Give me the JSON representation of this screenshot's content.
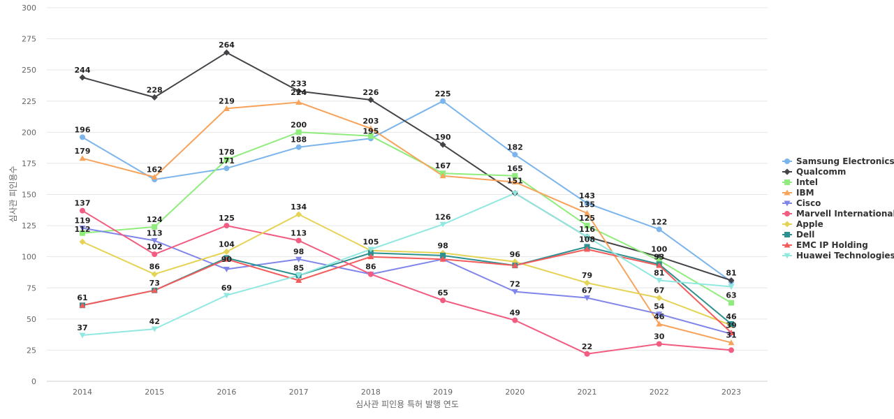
{
  "chart_data": {
    "type": "line",
    "title": "",
    "xlabel": "심사관 피인용 특허 발행 연도",
    "ylabel": "심사관 피인용수",
    "ylim": [
      0,
      300
    ],
    "yticks": [
      0,
      25,
      50,
      75,
      100,
      125,
      150,
      175,
      200,
      225,
      250,
      275,
      300
    ],
    "grid": true,
    "legend_position": "right",
    "categories": [
      "2014",
      "2015",
      "2016",
      "2017",
      "2018",
      "2019",
      "2020",
      "2021",
      "2022",
      "2023"
    ],
    "series": [
      {
        "name": "Samsung Electronics",
        "color": "#7cb5ec",
        "marker": "circle",
        "values": [
          196,
          162,
          171,
          188,
          195,
          225,
          182,
          143,
          122,
          80
        ]
      },
      {
        "name": "Qualcomm",
        "color": "#434348",
        "marker": "diamond",
        "values": [
          244,
          228,
          264,
          233,
          226,
          190,
          151,
          116,
          100,
          81
        ]
      },
      {
        "name": "Intel",
        "color": "#90ed7d",
        "marker": "square",
        "values": [
          119,
          124,
          178,
          200,
          197,
          167,
          165,
          125,
          97,
          63
        ]
      },
      {
        "name": "IBM",
        "color": "#f7a35c",
        "marker": "triangle",
        "values": [
          179,
          164,
          219,
          224,
          203,
          165,
          160,
          135,
          46,
          31
        ]
      },
      {
        "name": "Cisco",
        "color": "#8085e9",
        "marker": "triangle-down",
        "values": [
          123,
          113,
          90,
          98,
          86,
          98,
          72,
          67,
          54,
          38
        ]
      },
      {
        "name": "Marvell International",
        "color": "#f15c80",
        "marker": "circle",
        "values": [
          137,
          102,
          125,
          113,
          86,
          65,
          49,
          22,
          30,
          25
        ]
      },
      {
        "name": "Apple",
        "color": "#e4d354",
        "marker": "diamond",
        "values": [
          112,
          86,
          104,
          134,
          105,
          103,
          96,
          79,
          67,
          45
        ]
      },
      {
        "name": "Dell",
        "color": "#2b908f",
        "marker": "square",
        "values": [
          61,
          73,
          99,
          85,
          103,
          101,
          93,
          108,
          94,
          46
        ]
      },
      {
        "name": "EMC IP Holding",
        "color": "#f45b5b",
        "marker": "triangle",
        "values": [
          61,
          73,
          98,
          81,
          100,
          98,
          93,
          106,
          93,
          39
        ]
      },
      {
        "name": "Huawei Technologies",
        "color": "#91e8e1",
        "marker": "triangle-down",
        "values": [
          37,
          42,
          69,
          85,
          106,
          126,
          151,
          116,
          81,
          76
        ]
      }
    ],
    "data_labels": [
      {
        "text": "244",
        "x": "2014",
        "y": 244
      },
      {
        "text": "196",
        "x": "2014",
        "y": 196
      },
      {
        "text": "179",
        "x": "2014",
        "y": 179
      },
      {
        "text": "137",
        "x": "2014",
        "y": 137
      },
      {
        "text": "119",
        "x": "2014",
        "y": 123
      },
      {
        "text": "112",
        "x": "2014",
        "y": 116
      },
      {
        "text": "61",
        "x": "2014",
        "y": 61
      },
      {
        "text": "37",
        "x": "2014",
        "y": 37
      },
      {
        "text": "228",
        "x": "2015",
        "y": 228
      },
      {
        "text": "162",
        "x": "2015",
        "y": 164
      },
      {
        "text": "124",
        "x": "2015",
        "y": 124
      },
      {
        "text": "113",
        "x": "2015",
        "y": 113
      },
      {
        "text": "102",
        "x": "2015",
        "y": 102
      },
      {
        "text": "86",
        "x": "2015",
        "y": 86
      },
      {
        "text": "73",
        "x": "2015",
        "y": 73
      },
      {
        "text": "42",
        "x": "2015",
        "y": 42
      },
      {
        "text": "264",
        "x": "2016",
        "y": 264
      },
      {
        "text": "219",
        "x": "2016",
        "y": 219
      },
      {
        "text": "178",
        "x": "2016",
        "y": 178
      },
      {
        "text": "171",
        "x": "2016",
        "y": 171
      },
      {
        "text": "125",
        "x": "2016",
        "y": 125
      },
      {
        "text": "104",
        "x": "2016",
        "y": 104
      },
      {
        "text": "90",
        "x": "2016",
        "y": 92
      },
      {
        "text": "69",
        "x": "2016",
        "y": 69
      },
      {
        "text": "233",
        "x": "2017",
        "y": 233
      },
      {
        "text": "224",
        "x": "2017",
        "y": 226
      },
      {
        "text": "200",
        "x": "2017",
        "y": 200
      },
      {
        "text": "188",
        "x": "2017",
        "y": 188
      },
      {
        "text": "134",
        "x": "2017",
        "y": 134
      },
      {
        "text": "113",
        "x": "2017",
        "y": 113
      },
      {
        "text": "98",
        "x": "2017",
        "y": 98
      },
      {
        "text": "85",
        "x": "2017",
        "y": 85
      },
      {
        "text": "226",
        "x": "2018",
        "y": 226
      },
      {
        "text": "203",
        "x": "2018",
        "y": 203
      },
      {
        "text": "195",
        "x": "2018",
        "y": 195
      },
      {
        "text": "105",
        "x": "2018",
        "y": 106
      },
      {
        "text": "86",
        "x": "2018",
        "y": 86
      },
      {
        "text": "225",
        "x": "2019",
        "y": 225
      },
      {
        "text": "190",
        "x": "2019",
        "y": 190
      },
      {
        "text": "167",
        "x": "2019",
        "y": 167
      },
      {
        "text": "126",
        "x": "2019",
        "y": 126
      },
      {
        "text": "98",
        "x": "2019",
        "y": 103
      },
      {
        "text": "65",
        "x": "2019",
        "y": 65
      },
      {
        "text": "182",
        "x": "2020",
        "y": 182
      },
      {
        "text": "165",
        "x": "2020",
        "y": 165
      },
      {
        "text": "151",
        "x": "2020",
        "y": 155
      },
      {
        "text": "96",
        "x": "2020",
        "y": 96
      },
      {
        "text": "72",
        "x": "2020",
        "y": 72
      },
      {
        "text": "49",
        "x": "2020",
        "y": 49
      },
      {
        "text": "143",
        "x": "2021",
        "y": 143
      },
      {
        "text": "135",
        "x": "2021",
        "y": 136
      },
      {
        "text": "125",
        "x": "2021",
        "y": 125
      },
      {
        "text": "116",
        "x": "2021",
        "y": 116
      },
      {
        "text": "108",
        "x": "2021",
        "y": 108
      },
      {
        "text": "79",
        "x": "2021",
        "y": 79
      },
      {
        "text": "67",
        "x": "2021",
        "y": 67
      },
      {
        "text": "22",
        "x": "2021",
        "y": 22
      },
      {
        "text": "122",
        "x": "2022",
        "y": 122
      },
      {
        "text": "100",
        "x": "2022",
        "y": 100
      },
      {
        "text": "93",
        "x": "2022",
        "y": 94
      },
      {
        "text": "81",
        "x": "2022",
        "y": 81
      },
      {
        "text": "67",
        "x": "2022",
        "y": 67
      },
      {
        "text": "54",
        "x": "2022",
        "y": 54
      },
      {
        "text": "46",
        "x": "2022",
        "y": 46
      },
      {
        "text": "30",
        "x": "2022",
        "y": 30
      },
      {
        "text": "81",
        "x": "2023",
        "y": 81
      },
      {
        "text": "63",
        "x": "2023",
        "y": 63
      },
      {
        "text": "46",
        "x": "2023",
        "y": 46
      },
      {
        "text": "39",
        "x": "2023",
        "y": 39
      },
      {
        "text": "31",
        "x": "2023",
        "y": 31
      }
    ]
  }
}
